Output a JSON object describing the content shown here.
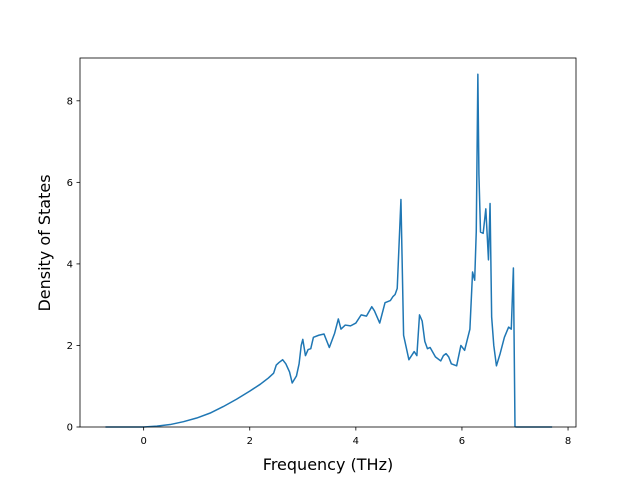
{
  "chart_data": {
    "type": "line",
    "title": "",
    "xlabel": "Frequency (THz)",
    "ylabel": "Density of States",
    "xlim": [
      -1.2,
      8.15
    ],
    "ylim": [
      0,
      9.05
    ],
    "x_ticks": [
      0,
      2,
      4,
      6,
      8
    ],
    "y_ticks": [
      0,
      2,
      4,
      6,
      8
    ],
    "grid": false,
    "legend": "none",
    "series": [
      {
        "color": "#1f77b4",
        "x": [
          -0.72,
          -0.5,
          -0.25,
          0.0,
          0.25,
          0.5,
          0.75,
          1.0,
          1.25,
          1.5,
          1.75,
          2.0,
          2.2,
          2.35,
          2.45,
          2.5,
          2.55,
          2.62,
          2.68,
          2.75,
          2.8,
          2.88,
          2.93,
          2.97,
          3.0,
          3.05,
          3.1,
          3.15,
          3.2,
          3.3,
          3.4,
          3.5,
          3.6,
          3.67,
          3.72,
          3.8,
          3.9,
          4.0,
          4.1,
          4.2,
          4.3,
          4.35,
          4.45,
          4.55,
          4.65,
          4.7,
          4.74,
          4.78,
          4.85,
          4.9,
          5.0,
          5.1,
          5.15,
          5.2,
          5.25,
          5.3,
          5.35,
          5.4,
          5.5,
          5.6,
          5.65,
          5.7,
          5.75,
          5.8,
          5.9,
          5.98,
          6.05,
          6.15,
          6.2,
          6.24,
          6.27,
          6.3,
          6.32,
          6.35,
          6.4,
          6.45,
          6.5,
          6.53,
          6.56,
          6.6,
          6.65,
          6.72,
          6.8,
          6.88,
          6.93,
          6.97,
          7.0,
          7.02,
          7.2,
          7.4,
          7.7
        ],
        "y": [
          0,
          0,
          0,
          0,
          0.02,
          0.06,
          0.13,
          0.22,
          0.34,
          0.5,
          0.68,
          0.88,
          1.05,
          1.2,
          1.32,
          1.52,
          1.58,
          1.65,
          1.55,
          1.35,
          1.08,
          1.25,
          1.55,
          2.0,
          2.15,
          1.75,
          1.9,
          1.92,
          2.2,
          2.25,
          2.28,
          1.95,
          2.3,
          2.65,
          2.4,
          2.5,
          2.48,
          2.55,
          2.75,
          2.72,
          2.95,
          2.85,
          2.55,
          3.05,
          3.1,
          3.2,
          3.25,
          3.4,
          5.58,
          2.25,
          1.65,
          1.85,
          1.75,
          2.75,
          2.6,
          2.1,
          1.92,
          1.95,
          1.72,
          1.62,
          1.75,
          1.8,
          1.72,
          1.55,
          1.5,
          2.0,
          1.88,
          2.4,
          3.8,
          3.6,
          4.8,
          8.65,
          6.2,
          4.78,
          4.75,
          5.35,
          4.1,
          5.48,
          2.7,
          2.0,
          1.5,
          1.8,
          2.2,
          2.45,
          2.4,
          3.9,
          0.01,
          0,
          0,
          0,
          0
        ]
      }
    ]
  }
}
